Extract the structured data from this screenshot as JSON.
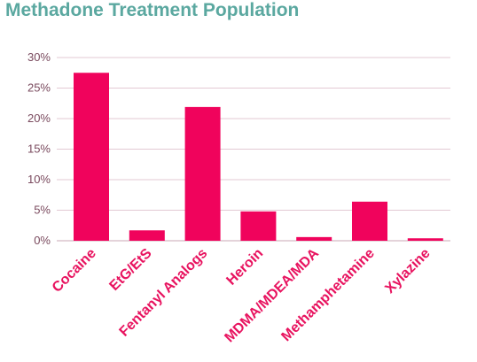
{
  "chart_data": {
    "type": "bar",
    "title": "Methadone Treatment Population",
    "xlabel": "",
    "ylabel": "",
    "categories": [
      "Cocaine",
      "EtG/EtS",
      "Fentanyl Analogs",
      "Heroin",
      "MDMA/MDEA/MDA",
      "Methamphetamine",
      "Xylazine"
    ],
    "values": [
      27.5,
      1.7,
      21.9,
      4.8,
      0.6,
      6.4,
      0.4
    ],
    "value_unit": "%",
    "ylim": [
      0,
      30
    ],
    "y_ticks": [
      "0%",
      "5%",
      "10%",
      "15%",
      "20%",
      "25%",
      "30%"
    ],
    "grid": true,
    "legend": "none",
    "colors": {
      "bar": "#f0035c",
      "title": "#5ba8a0",
      "category_label": "#e8135f",
      "tick_label": "#7a4a5e",
      "grid": "#e3c9d3"
    }
  }
}
